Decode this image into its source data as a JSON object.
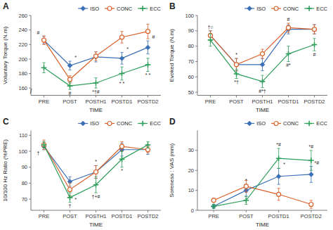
{
  "chart_data": [
    {
      "type": "line",
      "title": "A",
      "xlabel": "TIME",
      "ylabel": "Voluntary Torque (N.m)",
      "categories": [
        "PRE",
        "POST",
        "POSTH1",
        "POSTD1",
        "POSTD2"
      ],
      "series": [
        {
          "name": "ISO",
          "marker": "diamond",
          "values": [
            226,
            191,
            203,
            201,
            216
          ],
          "errors": [
            5,
            6,
            7,
            8,
            9
          ]
        },
        {
          "name": "CONC",
          "marker": "circle",
          "values": [
            226,
            172,
            204,
            230,
            238
          ],
          "errors": [
            6,
            5,
            6,
            8,
            10
          ]
        },
        {
          "name": "ECC",
          "marker": "plus",
          "values": [
            188,
            163,
            167,
            180,
            192
          ],
          "errors": [
            7,
            5,
            7,
            9,
            9
          ]
        }
      ],
      "ylim": [
        150,
        260
      ],
      "yticks": [
        160,
        180,
        200,
        220,
        240,
        260
      ],
      "grid": false,
      "legend": "upper right",
      "annotations": [
        {
          "text": "#",
          "series": "ISO",
          "index": 0,
          "position": "above-left"
        },
        {
          "text": "#",
          "series": "ECC",
          "index": 1,
          "position": "below"
        },
        {
          "text": "*",
          "series": "ISO",
          "index": 1,
          "position": "above-right"
        },
        {
          "text": "*†#",
          "series": "ECC",
          "index": 2,
          "position": "below"
        },
        {
          "text": "* *",
          "series": "ECC",
          "index": 3,
          "position": "below"
        },
        {
          "text": "*",
          "series": "ISO",
          "index": 3,
          "position": "above-right"
        },
        {
          "text": "* *",
          "series": "ECC",
          "index": 4,
          "position": "below"
        },
        {
          "text": "#",
          "series": "ISO",
          "index": 4,
          "position": "above-right"
        },
        {
          "text": "/",
          "position": "axis-break"
        }
      ]
    },
    {
      "type": "line",
      "title": "B",
      "xlabel": "TIME",
      "ylabel": "Evoked Torque (N.m)",
      "categories": [
        "PRE",
        "POST",
        "POSTH1",
        "POSTD1",
        "POSTD2"
      ],
      "series": [
        {
          "name": "ISO",
          "marker": "diamond",
          "values": [
            87,
            68,
            68,
            91,
            91
          ],
          "errors": [
            3,
            4,
            4,
            3,
            3
          ]
        },
        {
          "name": "CONC",
          "marker": "circle",
          "values": [
            87,
            68,
            75,
            92,
            91
          ],
          "errors": [
            3,
            4,
            3,
            3,
            3
          ]
        },
        {
          "name": "ECC",
          "marker": "plus",
          "values": [
            84,
            62,
            57,
            75,
            81
          ],
          "errors": [
            4,
            3,
            4,
            5,
            4
          ]
        }
      ],
      "ylim": [
        48,
        100
      ],
      "yticks": [
        50,
        60,
        70,
        80,
        90,
        100
      ],
      "grid": false,
      "legend": "upper right",
      "annotations": [
        {
          "text": "†○",
          "series": "ISO",
          "index": 0,
          "position": "above"
        },
        {
          "text": "*",
          "series": "ISO",
          "index": 1,
          "position": "above"
        },
        {
          "text": "*†",
          "series": "ECC",
          "index": 1,
          "position": "below"
        },
        {
          "text": "#*†",
          "series": "ECC",
          "index": 2,
          "position": "below"
        },
        {
          "text": "#",
          "series": "CONC",
          "index": 3,
          "position": "above"
        },
        {
          "text": "#*",
          "series": "ECC",
          "index": 3,
          "position": "below"
        },
        {
          "text": "#",
          "series": "ECC",
          "index": 4,
          "position": "below"
        }
      ]
    },
    {
      "type": "line",
      "title": "C",
      "xlabel": "TIME",
      "ylabel": "10/100 Hz Ratio (%PRE)",
      "categories": [
        "PRE",
        "POST",
        "POSTH1",
        "POSTD1",
        "POSTD2"
      ],
      "series": [
        {
          "name": "ISO",
          "marker": "diamond",
          "values": [
            103,
            81,
            87,
            101,
            101
          ],
          "errors": [
            2,
            3,
            4,
            4,
            3
          ]
        },
        {
          "name": "CONC",
          "marker": "circle",
          "values": [
            104,
            76,
            87,
            103,
            101
          ],
          "errors": [
            3,
            4,
            4,
            3,
            2
          ]
        },
        {
          "name": "ECC",
          "marker": "plus",
          "values": [
            104,
            71,
            79,
            95,
            104
          ],
          "errors": [
            2,
            3,
            5,
            5,
            2
          ]
        }
      ],
      "ylim": [
        63,
        113
      ],
      "yticks": [
        70,
        80,
        90,
        100,
        110
      ],
      "grid": false,
      "legend": "upper right",
      "annotations": [
        {
          "text": "†",
          "series": "ISO",
          "index": 0,
          "position": "below-left"
        },
        {
          "text": "†",
          "series": "ECC",
          "index": 1,
          "position": "below"
        },
        {
          "text": "*",
          "series": "CONC",
          "index": 1,
          "position": "below-right"
        },
        {
          "text": "*",
          "series": "ISO",
          "index": 2,
          "position": "above"
        },
        {
          "text": "†+#",
          "series": "ECC",
          "index": 2,
          "position": "below"
        },
        {
          "text": "*",
          "series": "ECC",
          "index": 3,
          "position": "below"
        }
      ]
    },
    {
      "type": "line",
      "title": "D",
      "xlabel": "TIME",
      "ylabel": "Soreness : VAS (mm)",
      "categories": [
        "PRE",
        "POST",
        "POSTD1",
        "POSTD2"
      ],
      "series": [
        {
          "name": "ISO",
          "marker": "diamond",
          "values": [
            2,
            10,
            17,
            18
          ],
          "errors": [
            1,
            3,
            4,
            4
          ]
        },
        {
          "name": "CONC",
          "marker": "circle",
          "values": [
            5,
            12,
            8,
            3
          ],
          "errors": [
            1,
            3,
            3,
            2
          ]
        },
        {
          "name": "ECC",
          "marker": "plus",
          "values": [
            2,
            5,
            26,
            25
          ],
          "errors": [
            1,
            2,
            5,
            5
          ]
        }
      ],
      "ylim": [
        0,
        40
      ],
      "yticks": [
        0,
        10,
        20,
        30
      ],
      "grid": false,
      "legend": "upper right",
      "annotations": [
        {
          "text": "*",
          "series": "ISO",
          "index": 1,
          "position": "above"
        },
        {
          "text": "*#",
          "series": "ECC",
          "index": 2,
          "position": "above"
        },
        {
          "text": "*",
          "series": "ISO",
          "index": 2,
          "position": "above-right"
        },
        {
          "text": "*#",
          "series": "ECC",
          "index": 3,
          "position": "above"
        },
        {
          "text": "*#",
          "series": "ISO",
          "index": 3,
          "position": "above-right"
        }
      ]
    }
  ]
}
